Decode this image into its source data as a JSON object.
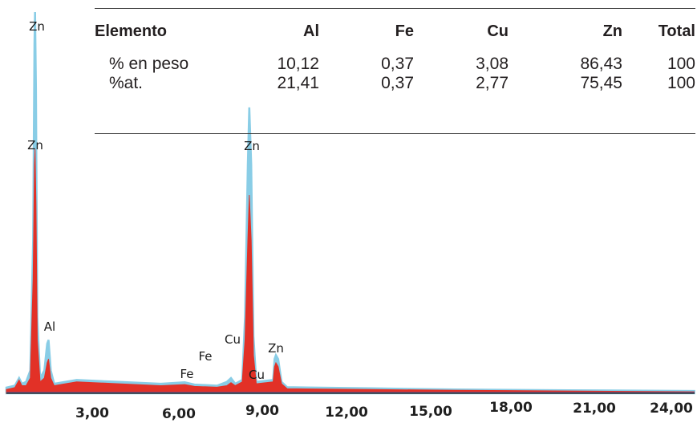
{
  "chart_data": {
    "type": "area",
    "x_ticks": [
      "3,00",
      "6,00",
      "9,00",
      "12,00",
      "15,00",
      "18,00",
      "21,00",
      "24,00"
    ],
    "x_tick_values": [
      3,
      6,
      9,
      12,
      15,
      18,
      21,
      24
    ],
    "xlim": [
      0,
      24.5
    ],
    "ylim": [
      0,
      100
    ],
    "series": [
      {
        "color": "#89cde6",
        "points": [
          [
            0,
            1.5
          ],
          [
            0.3,
            2
          ],
          [
            0.45,
            4
          ],
          [
            0.55,
            2.5
          ],
          [
            0.7,
            3
          ],
          [
            0.85,
            6
          ],
          [
            0.95,
            40
          ],
          [
            1.0,
            92
          ],
          [
            1.02,
            100
          ],
          [
            1.05,
            80
          ],
          [
            1.1,
            20
          ],
          [
            1.2,
            4
          ],
          [
            1.35,
            6
          ],
          [
            1.45,
            13
          ],
          [
            1.5,
            14
          ],
          [
            1.58,
            6
          ],
          [
            1.7,
            2.5
          ],
          [
            2.5,
            3.5
          ],
          [
            4,
            3
          ],
          [
            5.5,
            2.5
          ],
          [
            6.35,
            2.9
          ],
          [
            6.7,
            2.3
          ],
          [
            7.5,
            2
          ],
          [
            7.85,
            3
          ],
          [
            8.0,
            4
          ],
          [
            8.15,
            2.5
          ],
          [
            8.4,
            3.5
          ],
          [
            8.5,
            20
          ],
          [
            8.6,
            60
          ],
          [
            8.65,
            75
          ],
          [
            8.72,
            60
          ],
          [
            8.8,
            15
          ],
          [
            8.9,
            3
          ],
          [
            9.5,
            3.5
          ],
          [
            9.55,
            9
          ],
          [
            9.6,
            10
          ],
          [
            9.68,
            9
          ],
          [
            9.8,
            3
          ],
          [
            10,
            1.6
          ],
          [
            13,
            1.3
          ],
          [
            16,
            1
          ],
          [
            20,
            0.8
          ],
          [
            24.5,
            0.6
          ]
        ]
      },
      {
        "color": "#e23127",
        "points": [
          [
            0,
            1
          ],
          [
            0.3,
            1.5
          ],
          [
            0.45,
            3.5
          ],
          [
            0.55,
            2
          ],
          [
            0.7,
            2
          ],
          [
            0.85,
            4
          ],
          [
            0.95,
            30
          ],
          [
            1.0,
            60
          ],
          [
            1.02,
            64
          ],
          [
            1.05,
            50
          ],
          [
            1.1,
            14
          ],
          [
            1.2,
            3
          ],
          [
            1.35,
            4
          ],
          [
            1.45,
            8
          ],
          [
            1.5,
            9
          ],
          [
            1.58,
            4
          ],
          [
            1.7,
            2
          ],
          [
            2.5,
            3
          ],
          [
            4,
            2.5
          ],
          [
            5.5,
            2
          ],
          [
            6.35,
            2.3
          ],
          [
            6.7,
            1.8
          ],
          [
            7.5,
            1.6
          ],
          [
            7.85,
            2
          ],
          [
            8.0,
            2.8
          ],
          [
            8.15,
            2
          ],
          [
            8.4,
            3
          ],
          [
            8.5,
            14
          ],
          [
            8.6,
            40
          ],
          [
            8.65,
            52
          ],
          [
            8.72,
            40
          ],
          [
            8.8,
            10
          ],
          [
            8.9,
            2.5
          ],
          [
            9.5,
            3
          ],
          [
            9.55,
            7
          ],
          [
            9.6,
            8
          ],
          [
            9.68,
            7
          ],
          [
            9.8,
            2.5
          ],
          [
            10,
            1.2
          ],
          [
            13,
            1
          ],
          [
            16,
            0.8
          ],
          [
            20,
            0.6
          ],
          [
            24.5,
            0.4
          ]
        ]
      }
    ],
    "peaks": [
      {
        "label": "Zn",
        "x": 1.0
      },
      {
        "label": "Zn",
        "x": 1.0
      },
      {
        "label": "Al",
        "x": 1.5
      },
      {
        "label": "Fe",
        "x": 6.4
      },
      {
        "label": "Fe",
        "x": 7.1
      },
      {
        "label": "Cu",
        "x": 8.0
      },
      {
        "label": "Zn",
        "x": 8.65
      },
      {
        "label": "Cu",
        "x": 8.9
      },
      {
        "label": "Zn",
        "x": 9.6
      }
    ]
  },
  "table": {
    "headers": [
      "Elemento",
      "Al",
      "Fe",
      "Cu",
      "Zn",
      "Total"
    ],
    "rows": [
      [
        "% en peso",
        "10,12",
        "0,37",
        "3,08",
        "86,43",
        "100"
      ],
      [
        "%at.",
        "21,41",
        "0,37",
        "2,77",
        "75,45",
        "100"
      ]
    ]
  }
}
